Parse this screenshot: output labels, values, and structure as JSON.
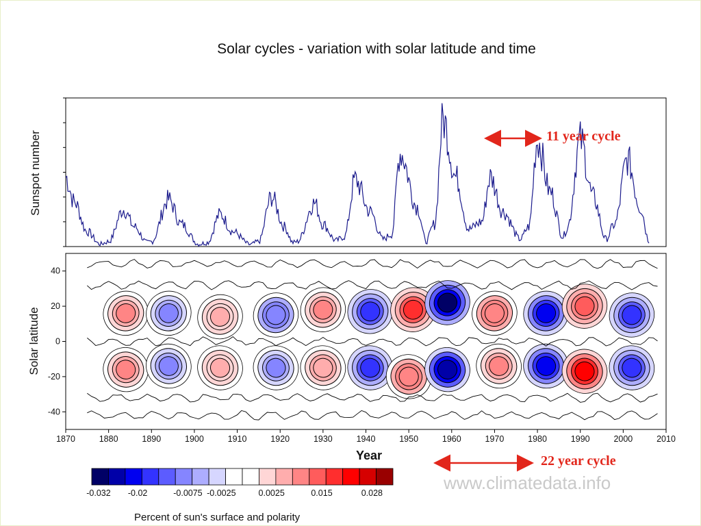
{
  "title": "Solar cycles - variation with solar latitude and time",
  "annotations": {
    "cycle11": "11 year cycle",
    "cycle22": "22 year cycle",
    "watermark": "www.climatedata.info"
  },
  "colors": {
    "sunspot_line": "#1a1a8c",
    "arrow": "#e2261b",
    "axis": "#000000"
  },
  "chart_data": [
    {
      "type": "line",
      "title": "",
      "xlabel": "",
      "ylabel": "Sunspot number",
      "xlim": [
        1870,
        2010
      ],
      "ylim": [
        0,
        300
      ],
      "grid": false,
      "series": [
        {
          "x": [
            1870,
            1872,
            1875,
            1878,
            1880,
            1883.5,
            1886,
            1889,
            1890,
            1894,
            1897,
            1901,
            1903,
            1906,
            1909,
            1913,
            1915,
            1918,
            1921,
            1923,
            1924,
            1928,
            1930,
            1933,
            1935,
            1937.5,
            1941,
            1944,
            1946,
            1948,
            1952,
            1954,
            1956,
            1958,
            1961,
            1964,
            1967,
            1969,
            1972,
            1976,
            1978,
            1980,
            1983,
            1986,
            1987,
            1990,
            1993,
            1996,
            1998,
            2001,
            2004,
            2006
          ],
          "values": [
            140,
            90,
            30,
            5,
            10,
            75,
            40,
            8,
            10,
            95,
            45,
            5,
            8,
            65,
            30,
            4,
            10,
            100,
            40,
            8,
            10,
            88,
            45,
            12,
            20,
            135,
            70,
            15,
            25,
            190,
            80,
            10,
            45,
            255,
            140,
            35,
            50,
            140,
            70,
            15,
            40,
            215,
            110,
            20,
            40,
            215,
            100,
            15,
            45,
            175,
            80,
            12
          ]
        }
      ]
    },
    {
      "type": "heatmap",
      "title": "",
      "xlabel": "Year",
      "ylabel": "Solar latitude",
      "xlim": [
        1870,
        2010
      ],
      "ylim": [
        -50,
        50
      ],
      "xticks": [
        1870,
        1880,
        1890,
        1900,
        1910,
        1920,
        1930,
        1940,
        1950,
        1960,
        1970,
        1980,
        1990,
        2000,
        2010
      ],
      "yticks": [
        40,
        20,
        0,
        -20,
        -40
      ],
      "blobs": [
        {
          "x": 1884,
          "y": 16,
          "value": 0.012
        },
        {
          "x": 1884,
          "y": -16,
          "value": 0.012
        },
        {
          "x": 1894,
          "y": 16,
          "value": -0.012
        },
        {
          "x": 1894,
          "y": -14,
          "value": -0.012
        },
        {
          "x": 1906,
          "y": 14,
          "value": 0.008
        },
        {
          "x": 1906,
          "y": -15,
          "value": 0.008
        },
        {
          "x": 1919,
          "y": 15,
          "value": -0.015
        },
        {
          "x": 1919,
          "y": -15,
          "value": -0.012
        },
        {
          "x": 1930,
          "y": 18,
          "value": 0.012
        },
        {
          "x": 1930,
          "y": -15,
          "value": 0.01
        },
        {
          "x": 1941,
          "y": 17,
          "value": -0.02
        },
        {
          "x": 1941,
          "y": -15,
          "value": -0.02
        },
        {
          "x": 1951,
          "y": 18,
          "value": 0.02
        },
        {
          "x": 1950,
          "y": -20,
          "value": 0.015
        },
        {
          "x": 1959,
          "y": 22,
          "value": -0.032
        },
        {
          "x": 1959,
          "y": -16,
          "value": -0.03
        },
        {
          "x": 1970,
          "y": 16,
          "value": 0.015
        },
        {
          "x": 1971,
          "y": -14,
          "value": 0.012
        },
        {
          "x": 1982,
          "y": 16,
          "value": -0.025
        },
        {
          "x": 1982,
          "y": -14,
          "value": -0.025
        },
        {
          "x": 1991,
          "y": 20,
          "value": 0.018
        },
        {
          "x": 1991,
          "y": -17,
          "value": 0.025
        },
        {
          "x": 2002,
          "y": 15,
          "value": -0.02
        },
        {
          "x": 2002,
          "y": -15,
          "value": -0.02
        }
      ],
      "colorbar": {
        "caption": "Percent of sun's surface and polarity",
        "colors": [
          "#000066",
          "#0000a8",
          "#0000f0",
          "#3333ff",
          "#5c5cff",
          "#8585ff",
          "#adadff",
          "#d6d6ff",
          "#ffffff",
          "#ffffff",
          "#ffd6d6",
          "#ffadad",
          "#ff8585",
          "#ff5c5c",
          "#ff2e2e",
          "#ff0000",
          "#d60000",
          "#990000"
        ],
        "tick_labels": [
          "-0.032",
          "-0.02",
          "-0.0075",
          "-0.0025",
          "0.0025",
          "0.015",
          "0.028"
        ]
      }
    }
  ]
}
